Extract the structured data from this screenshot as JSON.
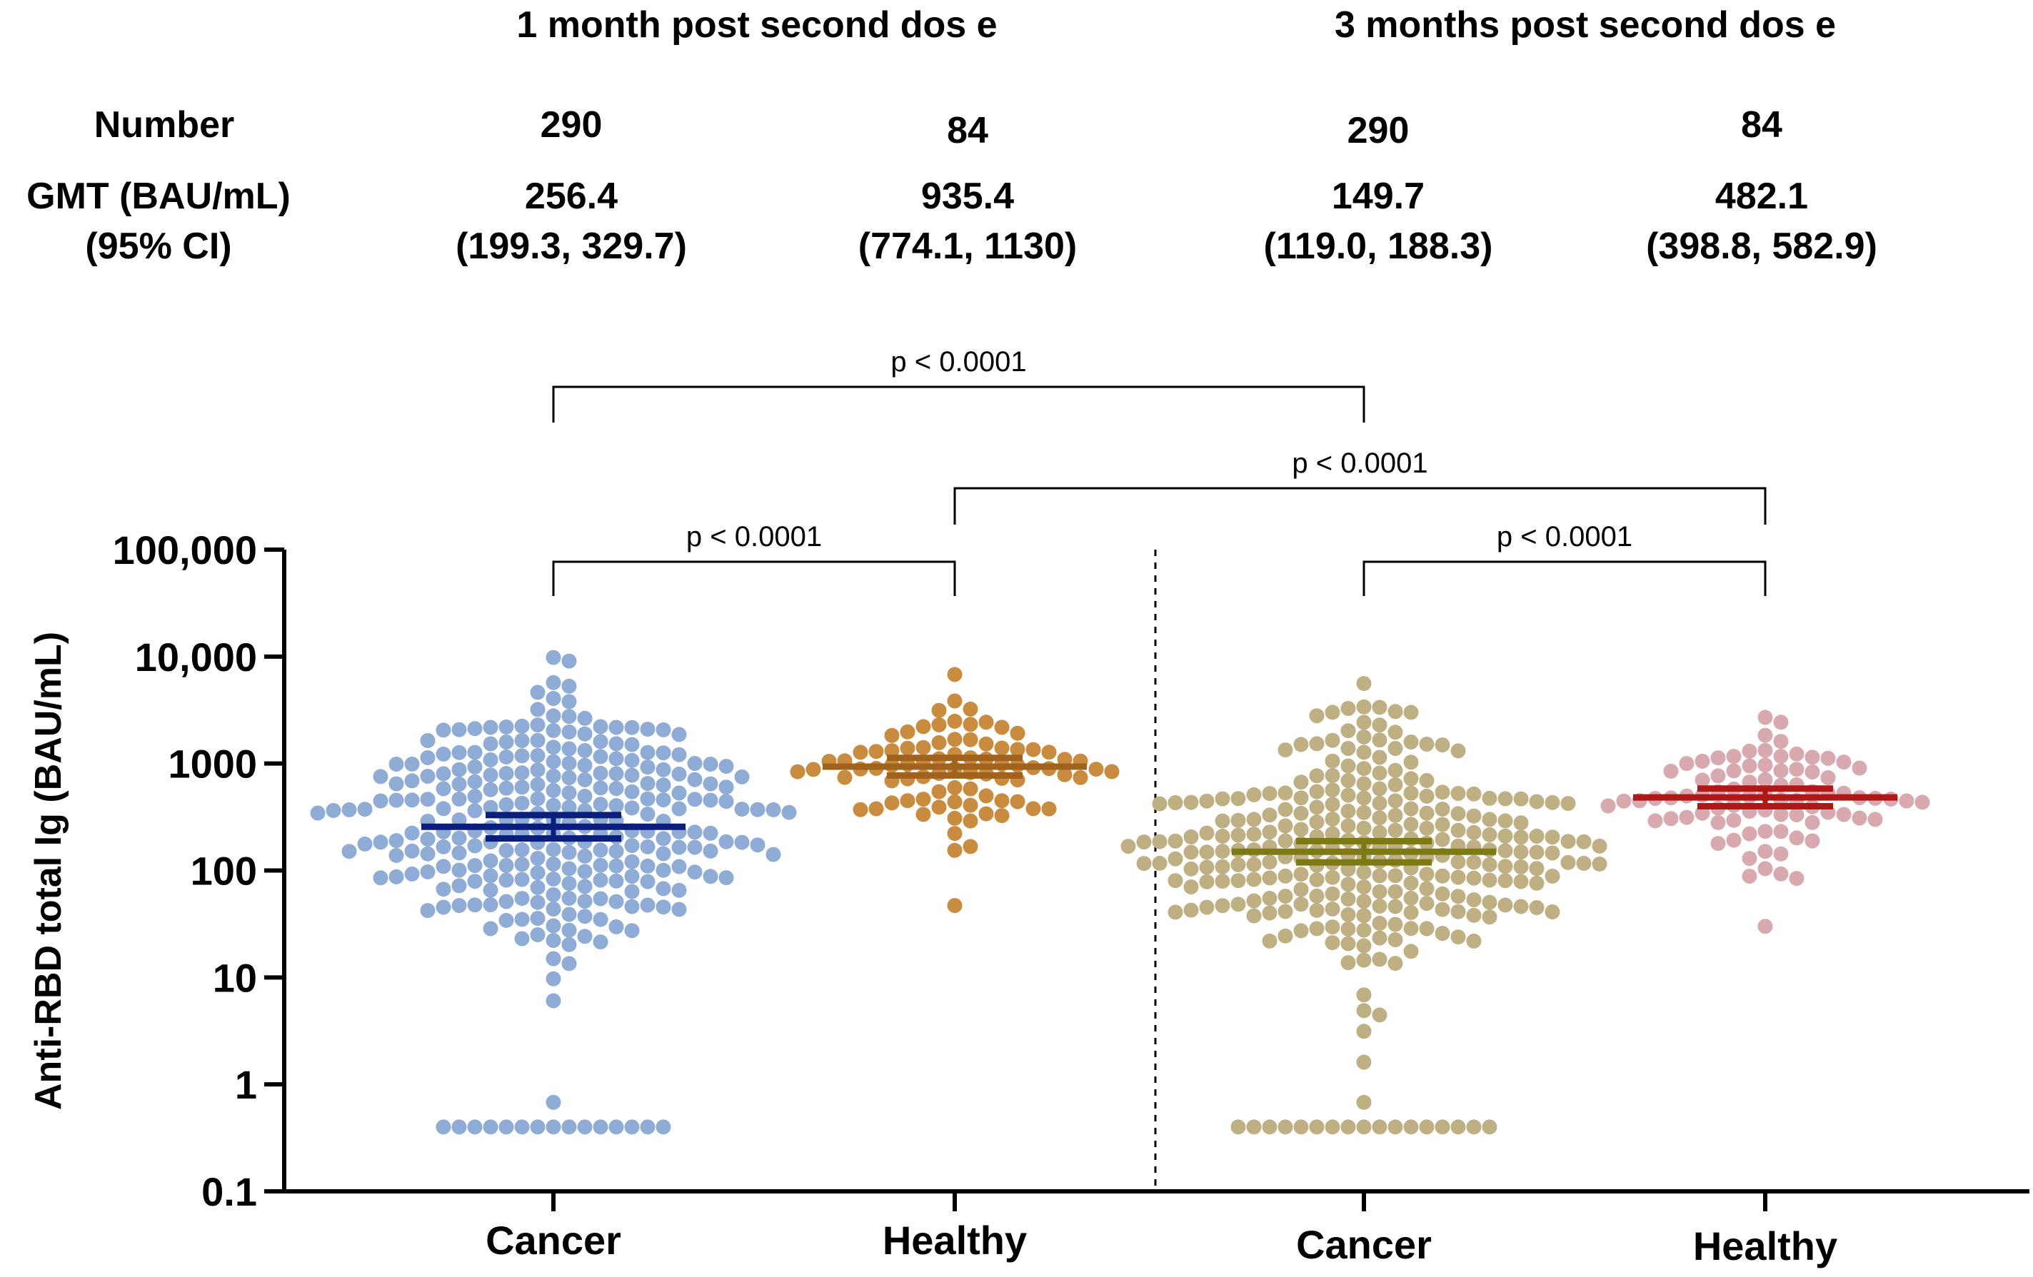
{
  "header": {
    "period1_title": "1 month post second dos e",
    "period2_title": "3 months post second dos e",
    "number_label": "Number",
    "gmt_label": "GMT (BAU/mL)",
    "ci_label": "(95% CI)",
    "columns": [
      {
        "number": "290",
        "gmt": "256.4",
        "ci": "(199.3, 329.7)"
      },
      {
        "number": "84",
        "gmt": "935.4",
        "ci": "(774.1, 1130)"
      },
      {
        "number": "290",
        "gmt": "149.7",
        "ci": "(119.0, 188.3)"
      },
      {
        "number": "84",
        "gmt": "482.1",
        "ci": "(398.8, 582.9)"
      }
    ]
  },
  "chart_data": {
    "type": "scatter",
    "subtype": "dot-plot (beeswarm) with geometric mean and 95% CI",
    "ylabel": "Anti-RBD total Ig (BAU/mL)",
    "yscale": "log10",
    "ylim": [
      0.1,
      100000
    ],
    "yticks": [
      0.1,
      1,
      10,
      100,
      1000,
      10000,
      100000
    ],
    "ytick_labels": [
      "0.1",
      "1",
      "10",
      "100",
      "1000",
      "10,000",
      "100,000"
    ],
    "categories": [
      "Cancer",
      "Healthy",
      "Cancer",
      "Healthy"
    ],
    "series": [
      {
        "name": "Cancer 1 month",
        "n": 290,
        "gmt": 256.4,
        "ci": [
          199.3,
          329.7
        ],
        "dot_color": "#8EACD6",
        "line_color": "#0B1F7A",
        "min": 0.4,
        "max": 9800,
        "lloq_count": 15
      },
      {
        "name": "Healthy 1 month",
        "n": 84,
        "gmt": 935.4,
        "ci": [
          774.1,
          1130
        ],
        "dot_color": "#C98C3E",
        "line_color": "#A0621C",
        "min": 47,
        "max": 6800,
        "lloq_count": 0
      },
      {
        "name": "Cancer 3 months",
        "n": 290,
        "gmt": 149.7,
        "ci": [
          119.0,
          188.3
        ],
        "dot_color": "#BFB083",
        "line_color": "#7D7A16",
        "min": 0.4,
        "max": 5600,
        "lloq_count": 17
      },
      {
        "name": "Healthy 3 months",
        "n": 84,
        "gmt": 482.1,
        "ci": [
          398.8,
          582.9
        ],
        "dot_color": "#D8A9AE",
        "line_color": "#B01818",
        "min": 30,
        "max": 2700,
        "lloq_count": 0
      }
    ],
    "comparisons": [
      {
        "groups": [
          1,
          2
        ],
        "label": "p < 0.0001"
      },
      {
        "groups": [
          1,
          3
        ],
        "label": "p < 0.0001"
      },
      {
        "groups": [
          2,
          4
        ],
        "label": "p < 0.0001"
      },
      {
        "groups": [
          3,
          4
        ],
        "label": "p < 0.0001"
      }
    ]
  }
}
